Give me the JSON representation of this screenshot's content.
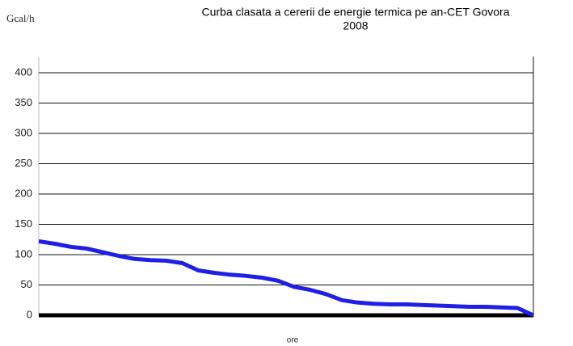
{
  "chart_data": {
    "type": "line",
    "title": [
      "Curba clasata a cererii de energie termica pe an-CET Govora",
      "2008"
    ],
    "y_label": "Gcal/h",
    "x_label": "ore",
    "series": [
      {
        "name": "",
        "color": "#1f1fe6",
        "values": [
          122,
          118,
          113,
          110,
          104,
          98,
          93,
          91,
          90,
          86,
          74,
          70,
          67,
          65,
          62,
          57,
          47,
          42,
          35,
          25,
          21,
          19,
          18,
          18,
          17,
          16,
          15,
          14,
          14,
          13,
          12,
          0
        ]
      }
    ],
    "ylim": [
      0,
      400
    ],
    "yticks": [
      0,
      50,
      100,
      150,
      200,
      250,
      300,
      350,
      400
    ],
    "grid": true
  }
}
